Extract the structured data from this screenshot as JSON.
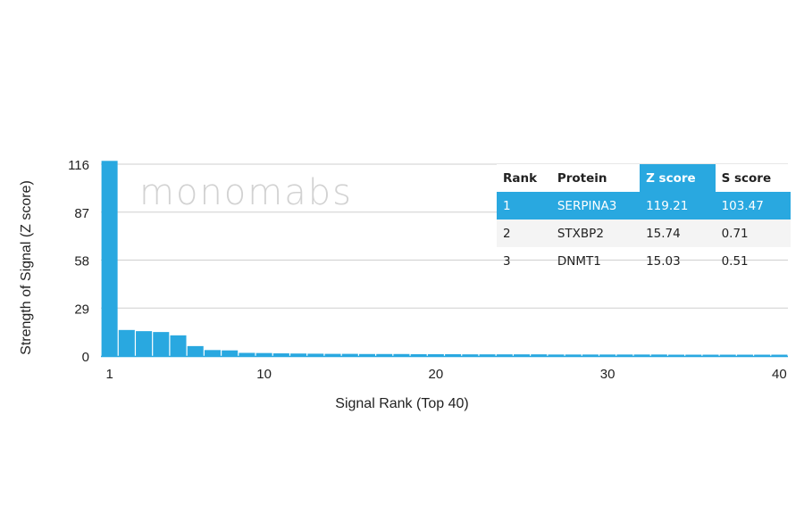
{
  "chart_data": {
    "type": "bar",
    "title": "",
    "xlabel": "Signal Rank (Top 40)",
    "ylabel": "Strength of Signal (Z score)",
    "ylim": [
      0,
      116
    ],
    "yticks": [
      0,
      29,
      58,
      87,
      116
    ],
    "xticks": [
      1,
      10,
      20,
      30,
      40
    ],
    "grid": true,
    "bar_color": "#29a8e0",
    "x": [
      1,
      2,
      3,
      4,
      5,
      6,
      7,
      8,
      9,
      10,
      11,
      12,
      13,
      14,
      15,
      16,
      17,
      18,
      19,
      20,
      21,
      22,
      23,
      24,
      25,
      26,
      27,
      28,
      29,
      30,
      31,
      32,
      33,
      34,
      35,
      36,
      37,
      38,
      39,
      40
    ],
    "values": [
      119.21,
      15.74,
      15.03,
      14.5,
      12.5,
      6.0,
      3.6,
      3.4,
      1.9,
      1.8,
      1.6,
      1.5,
      1.4,
      1.3,
      1.3,
      1.2,
      1.2,
      1.2,
      1.1,
      1.1,
      1.1,
      1.0,
      1.0,
      1.0,
      1.0,
      1.0,
      0.9,
      0.9,
      0.9,
      0.9,
      0.9,
      0.9,
      0.9,
      0.8,
      0.8,
      0.8,
      0.8,
      0.8,
      0.8,
      0.8
    ]
  },
  "watermark": "monomabs",
  "table": {
    "headers": [
      "Rank",
      "Protein",
      "Z score",
      "S score"
    ],
    "rows": [
      [
        "1",
        "SERPINA3",
        "119.21",
        "103.47"
      ],
      [
        "2",
        "STXBP2",
        "15.74",
        "0.71"
      ],
      [
        "3",
        "DNMT1",
        "15.03",
        "0.51"
      ]
    ]
  }
}
